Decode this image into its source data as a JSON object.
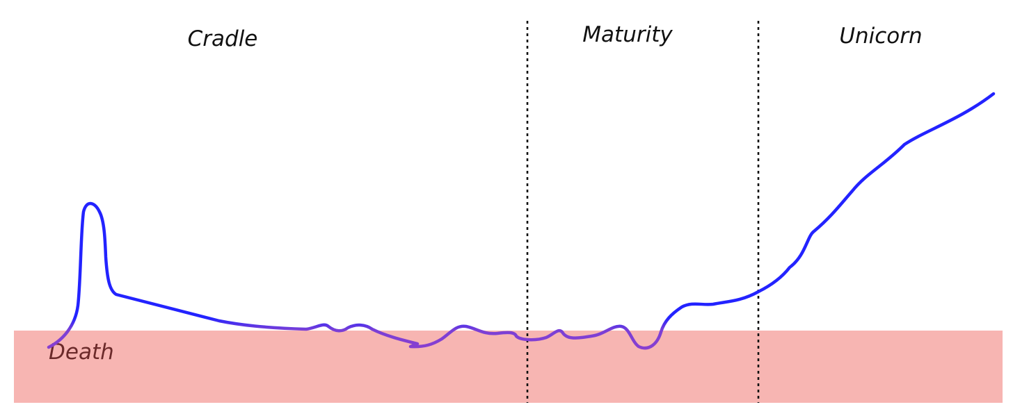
{
  "phases": [
    {
      "label": "Cradle"
    },
    {
      "label": "Maturity"
    },
    {
      "label": "Unicorn"
    }
  ],
  "zone": {
    "label": "Death",
    "color": "#f7b5b2",
    "text_color": "#6b2a2a"
  },
  "colors": {
    "curve_start": "#2323ff",
    "curve_death": "#8a3fcf",
    "divider": "#111111"
  }
}
